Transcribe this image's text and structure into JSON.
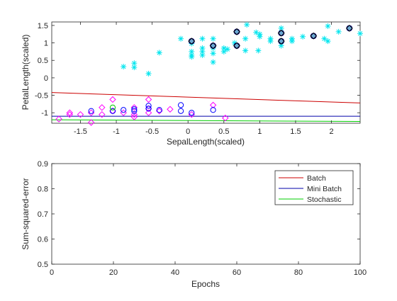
{
  "chart_data": [
    {
      "type": "scatter",
      "xlabel": "SepalLength(scaled)",
      "ylabel": "PetalLength(scaled)",
      "xlim": [
        -1.9,
        2.4
      ],
      "ylim": [
        -1.3,
        1.6
      ],
      "xticks": [
        -1.5,
        -1,
        -0.5,
        0,
        0.5,
        1,
        1.5,
        2
      ],
      "xtick_labels": [
        "-1.5",
        "-1",
        "-0.5",
        "0",
        "0.5",
        "1",
        "1.5",
        "2"
      ],
      "yticks": [
        -1,
        -0.5,
        0,
        0.5,
        1,
        1.5
      ],
      "ytick_labels": [
        "-1",
        "-0.5",
        "0",
        "0.5",
        "1",
        "1.5"
      ],
      "grid": false,
      "colors": {
        "asterisk": "#00e5ee",
        "diamond": "#ff00ff",
        "circle": "#0000ff",
        "batch": "#cc0000",
        "minibatch": "#0000aa",
        "stochastic": "#00cc00",
        "filled": "#6aa7d6"
      },
      "asterisk_points": [
        [
          -0.9,
          0.32
        ],
        [
          -0.75,
          0.3
        ],
        [
          -0.75,
          0.42
        ],
        [
          -0.55,
          0.12
        ],
        [
          -0.4,
          0.72
        ],
        [
          -0.1,
          1.12
        ],
        [
          0.05,
          0.6
        ],
        [
          0.05,
          0.65
        ],
        [
          0.05,
          0.75
        ],
        [
          0.05,
          0.98
        ],
        [
          0.2,
          0.65
        ],
        [
          0.2,
          0.75
        ],
        [
          0.2,
          0.85
        ],
        [
          0.2,
          1.12
        ],
        [
          0.35,
          0.45
        ],
        [
          0.35,
          0.7
        ],
        [
          0.35,
          0.85
        ],
        [
          0.35,
          1.12
        ],
        [
          0.5,
          0.75
        ],
        [
          0.5,
          0.85
        ],
        [
          0.55,
          0.82
        ],
        [
          0.65,
          1.0
        ],
        [
          0.8,
          0.78
        ],
        [
          0.8,
          1.12
        ],
        [
          0.82,
          1.52
        ],
        [
          0.95,
          1.3
        ],
        [
          0.98,
          0.78
        ],
        [
          1.0,
          1.18
        ],
        [
          1.0,
          1.25
        ],
        [
          1.15,
          1.05
        ],
        [
          1.15,
          1.12
        ],
        [
          1.3,
          0.92
        ],
        [
          1.3,
          1.42
        ],
        [
          1.45,
          1.05
        ],
        [
          1.45,
          1.12
        ],
        [
          1.6,
          1.18
        ],
        [
          1.9,
          1.12
        ],
        [
          1.95,
          1.05
        ],
        [
          1.95,
          1.48
        ],
        [
          2.1,
          1.32
        ],
        [
          2.4,
          1.27
        ]
      ],
      "diamond_points": [
        [
          -1.8,
          -1.18
        ],
        [
          -1.65,
          -1.0
        ],
        [
          -1.65,
          -1.05
        ],
        [
          -1.5,
          -1.05
        ],
        [
          -1.35,
          -1.0
        ],
        [
          -1.35,
          -1.28
        ],
        [
          -1.2,
          -0.85
        ],
        [
          -1.2,
          -1.05
        ],
        [
          -1.05,
          -0.62
        ],
        [
          -1.05,
          -0.95
        ],
        [
          -0.9,
          -1.0
        ],
        [
          -0.75,
          -0.85
        ],
        [
          -0.75,
          -1.05
        ],
        [
          -0.75,
          -1.12
        ],
        [
          -0.55,
          -0.62
        ],
        [
          -0.55,
          -0.88
        ],
        [
          -0.55,
          -1.0
        ],
        [
          -0.4,
          -0.95
        ],
        [
          -0.25,
          -0.9
        ],
        [
          0.05,
          -1.05
        ],
        [
          0.35,
          -0.78
        ],
        [
          0.52,
          -1.15
        ]
      ],
      "circle_points": [
        [
          -1.35,
          -0.95
        ],
        [
          -1.05,
          -0.95
        ],
        [
          -0.9,
          -0.92
        ],
        [
          -0.75,
          -0.9
        ],
        [
          -0.75,
          -0.95
        ],
        [
          -0.55,
          -0.8
        ],
        [
          -0.55,
          -0.88
        ],
        [
          -0.4,
          -0.92
        ],
        [
          -0.1,
          -0.78
        ],
        [
          -0.1,
          -0.95
        ],
        [
          0.05,
          -1.0
        ],
        [
          0.35,
          -0.92
        ]
      ],
      "green_circle_points": [
        [
          -1.05,
          -0.85
        ]
      ],
      "filled_circle_points": [
        [
          0.05,
          1.05
        ],
        [
          0.35,
          0.92
        ],
        [
          0.68,
          1.32
        ],
        [
          0.68,
          0.92
        ],
        [
          1.3,
          1.05
        ],
        [
          1.3,
          1.28
        ],
        [
          1.75,
          1.2
        ],
        [
          2.25,
          1.42
        ]
      ],
      "lines": [
        {
          "name": "Batch",
          "y_start": -0.42,
          "y_end": -0.72
        },
        {
          "name": "Mini Batch",
          "y_start": -1.1,
          "y_end": -1.1
        },
        {
          "name": "Stochastic",
          "y_start": -1.2,
          "y_end": -1.25
        }
      ]
    },
    {
      "type": "line",
      "xlabel": "Epochs",
      "ylabel": "Sum-squared-error",
      "xlim": [
        0,
        100
      ],
      "ylim": [
        0.5,
        0.9
      ],
      "xticks": [
        0,
        20,
        40,
        60,
        80,
        100
      ],
      "xtick_labels": [
        "0",
        "20",
        "40",
        "60",
        "80",
        "100"
      ],
      "yticks": [
        0.5,
        0.6,
        0.7,
        0.8,
        0.9
      ],
      "ytick_labels": [
        "0.5",
        "0.6",
        "0.7",
        "0.8",
        "0.9"
      ],
      "grid": false,
      "legend_placement": "top-right",
      "series": [
        {
          "name": "Batch",
          "color": "#cc0000",
          "values": []
        },
        {
          "name": "Mini Batch",
          "color": "#0000aa",
          "values": []
        },
        {
          "name": "Stochastic",
          "color": "#00cc00",
          "values": []
        }
      ]
    }
  ]
}
